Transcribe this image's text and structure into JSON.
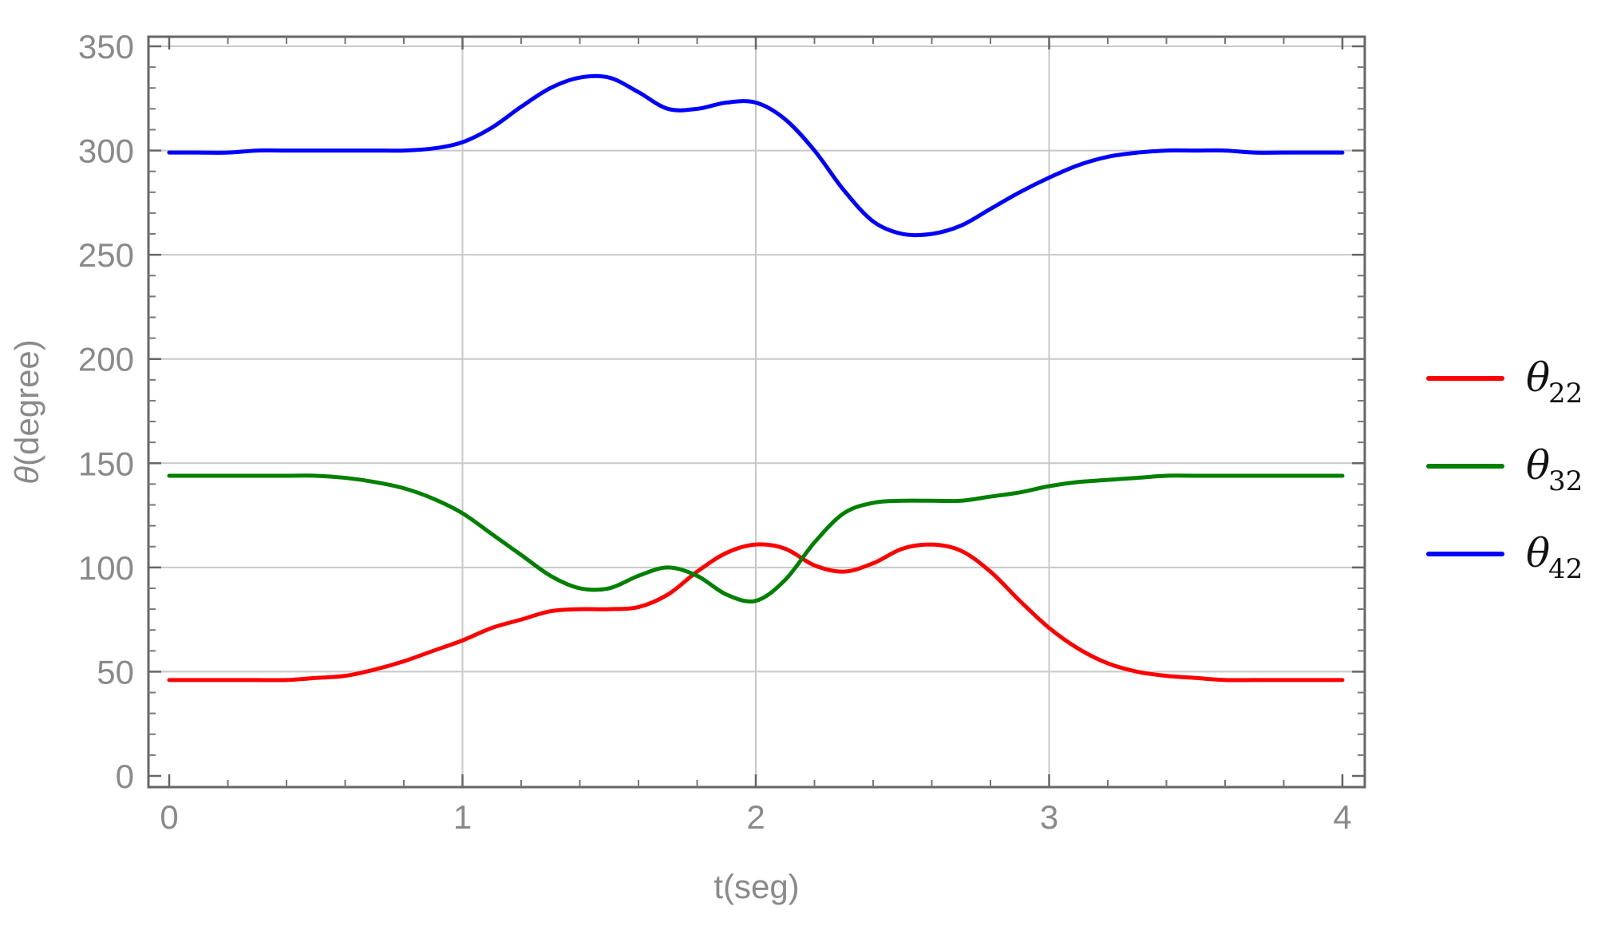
{
  "chart_data": {
    "type": "line",
    "title": "",
    "xlabel": "t(seg)",
    "ylabel_symbol": "θ",
    "ylabel_rest": "(degree)",
    "xlim": [
      0,
      4
    ],
    "ylim": [
      0,
      350
    ],
    "xticks": [
      0,
      1,
      2,
      3,
      4
    ],
    "yticks": [
      0,
      50,
      100,
      150,
      200,
      250,
      300,
      350
    ],
    "grid": true,
    "legend_position": "right",
    "x": [
      0,
      0.1,
      0.2,
      0.3,
      0.4,
      0.5,
      0.6,
      0.7,
      0.8,
      0.9,
      1.0,
      1.1,
      1.2,
      1.3,
      1.4,
      1.5,
      1.6,
      1.7,
      1.8,
      1.9,
      2.0,
      2.1,
      2.2,
      2.3,
      2.4,
      2.5,
      2.6,
      2.7,
      2.8,
      2.9,
      3.0,
      3.1,
      3.2,
      3.3,
      3.4,
      3.5,
      3.6,
      3.7,
      3.8,
      3.9,
      4.0
    ],
    "series": [
      {
        "symbol": "θ",
        "subscript": "22",
        "color": "#ff0000",
        "values": [
          46,
          46,
          46,
          46,
          46,
          47,
          48,
          51,
          55,
          60,
          65,
          71,
          75,
          79,
          80,
          80,
          81,
          87,
          98,
          107,
          111,
          109,
          101,
          98,
          102,
          109,
          111,
          108,
          98,
          84,
          71,
          61,
          54,
          50,
          48,
          47,
          46,
          46,
          46,
          46,
          46
        ]
      },
      {
        "symbol": "θ",
        "subscript": "32",
        "color": "#008000",
        "values": [
          144,
          144,
          144,
          144,
          144,
          144,
          143,
          141,
          138,
          133,
          126,
          116,
          106,
          96,
          90,
          90,
          96,
          100,
          96,
          87,
          84,
          94,
          112,
          126,
          131,
          132,
          132,
          132,
          134,
          136,
          139,
          141,
          142,
          143,
          144,
          144,
          144,
          144,
          144,
          144,
          144
        ]
      },
      {
        "symbol": "θ",
        "subscript": "42",
        "color": "#0000ff",
        "values": [
          299,
          299,
          299,
          300,
          300,
          300,
          300,
          300,
          300,
          301,
          304,
          311,
          321,
          330,
          335,
          335,
          328,
          320,
          320,
          323,
          323,
          315,
          300,
          281,
          266,
          260,
          260,
          264,
          272,
          280,
          287,
          293,
          297,
          299,
          300,
          300,
          300,
          299,
          299,
          299,
          299
        ]
      }
    ]
  }
}
